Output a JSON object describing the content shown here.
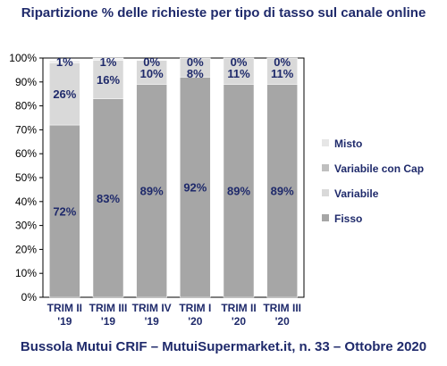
{
  "title": "Ripartizione % delle richieste per tipo di tasso sul canale online",
  "footer": "Bussola Mutui CRIF – MutuiSupermarket.it, n. 33 – Ottobre 2020",
  "chart_data": {
    "type": "bar",
    "stacked": true,
    "title": "Ripartizione % delle richieste per tipo di tasso sul canale online",
    "categories": [
      [
        "TRIM II",
        "'19"
      ],
      [
        "TRIM III",
        "'19"
      ],
      [
        "TRIM IV",
        "'19"
      ],
      [
        "TRIM I",
        "'20"
      ],
      [
        "TRIM II",
        "'20"
      ],
      [
        "TRIM III",
        "'20"
      ]
    ],
    "ylim": [
      0,
      100
    ],
    "yticks": [
      "0%",
      "10%",
      "20%",
      "30%",
      "40%",
      "50%",
      "60%",
      "70%",
      "80%",
      "90%",
      "100%"
    ],
    "series": [
      {
        "name": "Fisso",
        "values": [
          72,
          83,
          89,
          92,
          89,
          89
        ],
        "labels": [
          "72%",
          "83%",
          "89%",
          "92%",
          "89%",
          "89%"
        ],
        "color": "#a6a6a6"
      },
      {
        "name": "Variabile",
        "values": [
          26,
          16,
          10,
          8,
          11,
          11
        ],
        "labels": [
          "26%",
          "16%",
          "10%",
          "8%",
          "11%",
          "11%"
        ],
        "color": "#d9d9d9"
      },
      {
        "name": "Variabile con Cap",
        "values": [
          0,
          0,
          0,
          0,
          0,
          0
        ],
        "labels": [],
        "color": "#bfbfbf"
      },
      {
        "name": "Misto",
        "values": [
          1,
          1,
          0,
          0,
          0,
          0
        ],
        "labels": [
          "1%",
          "1%",
          "0%",
          "0%",
          "0%",
          "0%"
        ],
        "color": "#eeeeee"
      }
    ],
    "legend": {
      "position": "right",
      "order": [
        "Misto",
        "Variabile con Cap",
        "Variabile",
        "Fisso"
      ]
    },
    "grid": false
  }
}
